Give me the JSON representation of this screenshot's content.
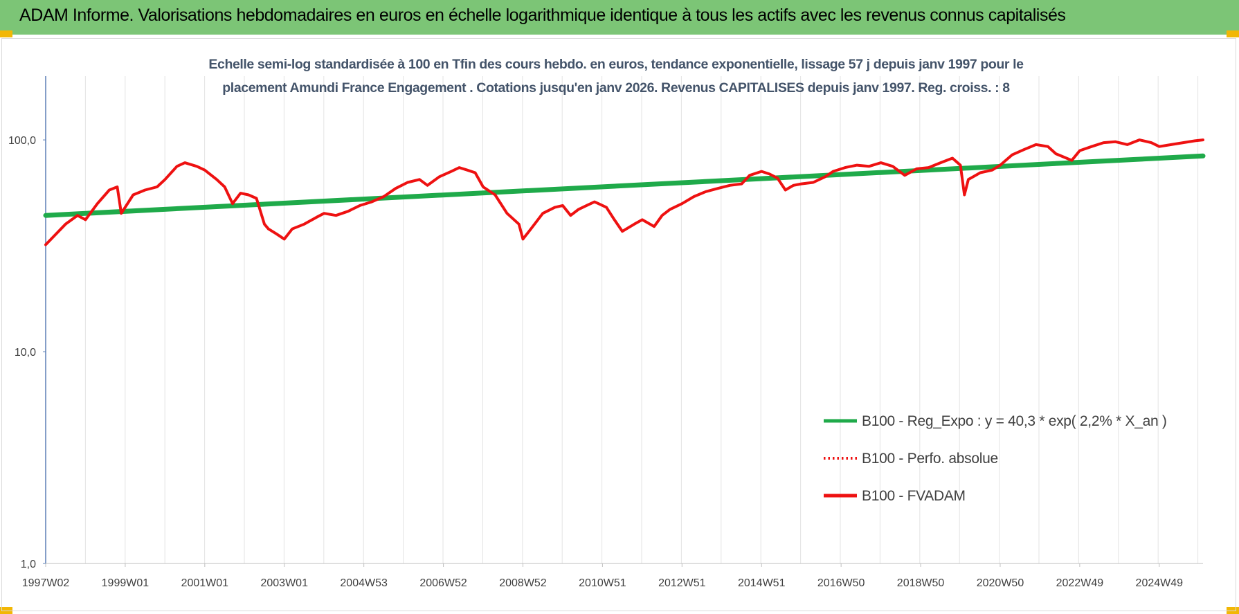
{
  "header": {
    "title": "ADAM Informe. Valorisations hebdomadaires en euros en échelle logarithmique identique à tous les actifs avec les revenus connus capitalisés"
  },
  "colors": {
    "header_bg": "#7cc576",
    "trend": "#1faa4a",
    "series": "#ee1111",
    "accent": "#f2b705"
  },
  "chart_data": {
    "type": "line",
    "title_lines": [
      "Echelle semi-log standardisée à 100 en Tfin des cours hebdo. en euros, tendance exponentielle, lissage 57 j depuis janv 1997 pour le",
      "placement Amundi France Engagement . Cotations jusqu'en janv 2026. Revenus CAPITALISES depuis janv 1997. Reg. croiss. : 8"
    ],
    "yscale": "log",
    "ylim": [
      1,
      200
    ],
    "yticks": [
      1,
      10,
      100
    ],
    "ytick_labels": [
      "1,0",
      "10,0",
      "100,0"
    ],
    "xlim": [
      1997.0,
      2026.1
    ],
    "xticks": [
      1997.0,
      1999.0,
      2001.0,
      2003.0,
      2005.0,
      2007.0,
      2009.0,
      2011.0,
      2013.0,
      2015.0,
      2017.0,
      2019.0,
      2021.0,
      2023.0,
      2025.0
    ],
    "xtick_labels": [
      "1997W02",
      "1999W01",
      "2001W01",
      "2003W01",
      "2004W53",
      "2006W52",
      "2008W52",
      "2010W51",
      "2012W51",
      "2014W51",
      "2016W50",
      "2018W50",
      "2020W50",
      "2022W49",
      "2024W49"
    ],
    "grid": "vertical",
    "legend_position": "bottom-right",
    "legend": [
      {
        "label": "B100 - Reg_Expo : y = 40,3 * exp( 2,2% *  X_an )",
        "style": "solid-green"
      },
      {
        "label": "B100 - Perfo. absolue",
        "style": "dotted-red"
      },
      {
        "label": "B100 - FVADAM",
        "style": "solid-red"
      }
    ],
    "series": [
      {
        "name": "B100 - Reg_Expo : y = 40,3 * exp( 2,2% *  X_an )",
        "x": [
          1997.0,
          2026.1
        ],
        "values": [
          44,
          84
        ]
      },
      {
        "name": "B100 - FVADAM",
        "x": [
          1997.0,
          1997.2,
          1997.5,
          1997.8,
          1998.0,
          1998.3,
          1998.6,
          1998.8,
          1998.9,
          1999.2,
          1999.5,
          1999.8,
          2000.0,
          2000.3,
          2000.5,
          2000.8,
          2001.0,
          2001.3,
          2001.5,
          2001.7,
          2001.9,
          2002.1,
          2002.3,
          2002.5,
          2002.6,
          2002.8,
          2003.0,
          2003.2,
          2003.5,
          2003.8,
          2004.0,
          2004.3,
          2004.6,
          2004.9,
          2005.2,
          2005.5,
          2005.8,
          2006.1,
          2006.4,
          2006.6,
          2006.9,
          2007.2,
          2007.4,
          2007.6,
          2007.8,
          2008.0,
          2008.3,
          2008.6,
          2008.9,
          2009.0,
          2009.2,
          2009.5,
          2009.8,
          2010.0,
          2010.2,
          2010.4,
          2010.6,
          2010.8,
          2010.9,
          2011.1,
          2011.3,
          2011.5,
          2011.6,
          2011.8,
          2012.0,
          2012.3,
          2012.5,
          2012.7,
          2013.0,
          2013.3,
          2013.6,
          2013.9,
          2014.2,
          2014.5,
          2014.7,
          2015.0,
          2015.2,
          2015.4,
          2015.6,
          2015.8,
          2016.0,
          2016.3,
          2016.6,
          2016.8,
          2017.1,
          2017.4,
          2017.7,
          2018.0,
          2018.3,
          2018.6,
          2018.9,
          2019.2,
          2019.5,
          2019.8,
          2020.0,
          2020.1,
          2020.2,
          2020.5,
          2020.8,
          2021.0,
          2021.3,
          2021.6,
          2021.9,
          2022.2,
          2022.4,
          2022.6,
          2022.8,
          2023.0,
          2023.3,
          2023.6,
          2023.9,
          2024.2,
          2024.5,
          2024.8,
          2025.0,
          2025.3,
          2025.6,
          2025.9,
          2026.1
        ],
        "values": [
          32,
          35,
          40,
          44,
          42,
          50,
          58,
          60,
          45,
          55,
          58,
          60,
          65,
          75,
          78,
          75,
          72,
          65,
          60,
          50,
          56,
          55,
          53,
          40,
          38,
          36,
          34,
          38,
          40,
          43,
          45,
          44,
          46,
          49,
          51,
          54,
          59,
          63,
          65,
          61,
          67,
          71,
          74,
          72,
          70,
          60,
          55,
          45,
          40,
          34,
          38,
          45,
          48,
          49,
          44,
          47,
          49,
          51,
          50,
          48,
          42,
          37,
          38,
          40,
          42,
          39,
          44,
          47,
          50,
          54,
          57,
          59,
          61,
          62,
          68,
          71,
          69,
          66,
          58,
          61,
          62,
          63,
          67,
          71,
          74,
          76,
          75,
          78,
          75,
          68,
          73,
          74,
          78,
          82,
          76,
          55,
          65,
          70,
          72,
          76,
          85,
          90,
          95,
          93,
          86,
          83,
          80,
          89,
          93,
          97,
          98,
          95,
          100,
          97,
          93,
          95,
          97,
          99,
          100
        ]
      }
    ]
  }
}
